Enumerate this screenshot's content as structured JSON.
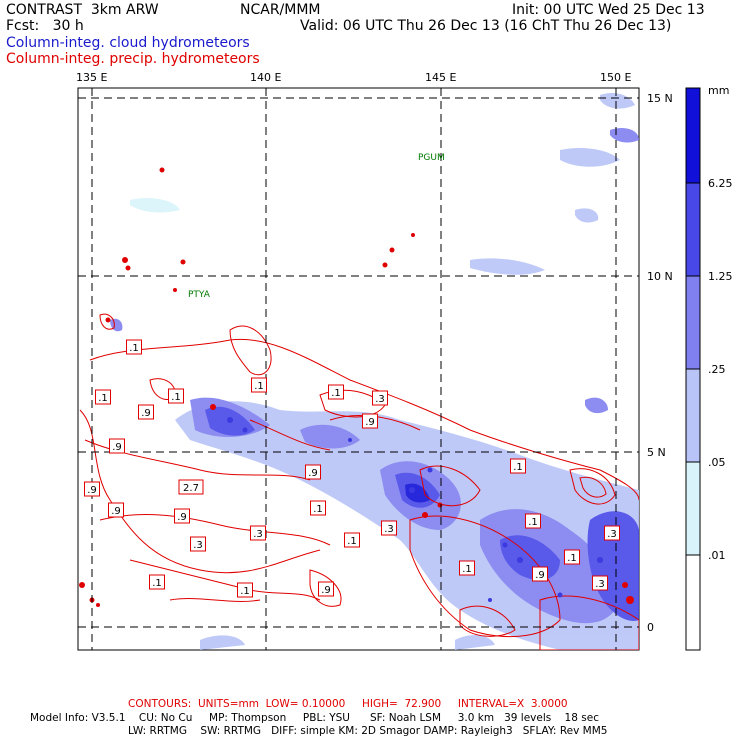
{
  "header": {
    "left1": "CONTRAST  3km ARW",
    "left2": "Fcst:   30 h",
    "center": "NCAR/MMM",
    "init": "Init: 00 UTC Wed 25 Dec 13",
    "valid": "Valid: 06 UTC Thu 26 Dec 13 (16 ChT Thu 26 Dec 13)",
    "field1": "Column-integ. cloud hydrometeors",
    "field2": "Column-integ. precip. hydrometeors"
  },
  "axes": {
    "lon_labels": [
      "135 E",
      "140 E",
      "145 E",
      "150 E"
    ],
    "lat_labels": [
      "15 N",
      "10 N",
      "5 N",
      "0"
    ]
  },
  "places": [
    {
      "name": "PGUM"
    },
    {
      "name": "PTYA"
    }
  ],
  "contour_labels": [
    ".1",
    ".1",
    ".1",
    ".1",
    ".3",
    ".9",
    ".9",
    ".9",
    ".9",
    ".1",
    ".9",
    "2.7",
    ".9",
    ".9",
    ".1",
    ".3",
    ".3",
    ".3",
    ".1",
    ".1",
    ".1",
    ".9",
    ".1",
    ".1",
    ".1",
    ".3",
    ".9",
    ".1",
    ".3"
  ],
  "legend": {
    "unit": "mm",
    "levels": [
      "6.25",
      "1.25",
      ".25",
      ".05",
      ".01"
    ],
    "colors": [
      "#1010d8",
      "#4848e8",
      "#8080f0",
      "#b8c4f8",
      "#d8f4fa",
      "#ffffff"
    ]
  },
  "footer": {
    "contours": "CONTOURS:  UNITS=mm  LOW= 0.10000     HIGH=  72.900     INTERVAL=X  3.0000",
    "line1": "Model Info: V3.5.1    CU: No Cu     MP: Thompson     PBL: YSU      SF: Noah LSM     3.0 km   39 levels    18 sec",
    "line2": "LW: RRTMG    SW: RRTMG   DIFF: simple KM: 2D Smagor DAMP: Rayleigh3   SFLAY: Rev MM5"
  },
  "colors": {
    "cloud": "#3a3ae0",
    "precip": "#e00000",
    "label_green": "#007a00"
  }
}
